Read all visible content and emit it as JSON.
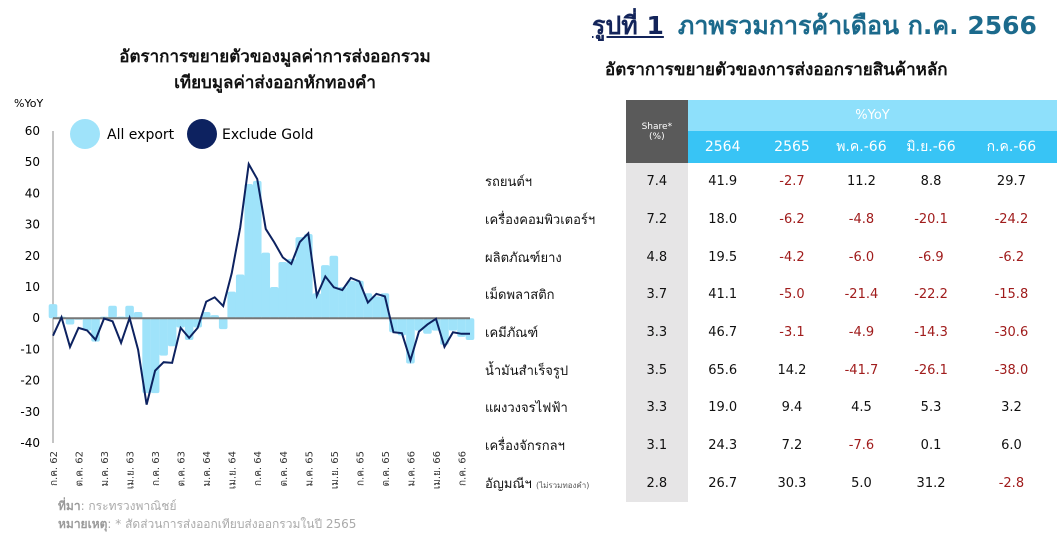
{
  "figure": {
    "number": "รูปที่ 1",
    "title": "ภาพรวมการค้าเดือน ก.ค. 2566"
  },
  "chart_data": {
    "type": "bar",
    "title": [
      "อัตราการขยายตัวของมูลค่าการส่งออกรวม",
      "เทียบมูลค่าส่งออกหักทองคำ"
    ],
    "ylabel": "%YoY",
    "ylim": [
      -40,
      60
    ],
    "yticks": [
      60,
      50,
      40,
      30,
      20,
      10,
      0,
      -10,
      -20,
      -30,
      -40
    ],
    "xtick_labels": [
      "ก.ค. 62",
      "ต.ค. 62",
      "ม.ค. 63",
      "เม.ย. 63",
      "ก.ค. 63",
      "ต.ค. 63",
      "ม.ค. 64",
      "เม.ย. 64",
      "ก.ค. 64",
      "ต.ค. 64",
      "ม.ค. 65",
      "เม.ย. 65",
      "ก.ค. 65",
      "ต.ค. 65",
      "ม.ค. 66",
      "เม.ย. 66",
      "ก.ค. 66"
    ],
    "legend_position": "top-left",
    "series": [
      {
        "name": "All export",
        "type": "bar",
        "color": "#9fe3fa",
        "values": [
          4.5,
          0.5,
          -2,
          -0.5,
          -4,
          -7.5,
          0.5,
          4,
          0.5,
          4,
          2,
          -24,
          -24,
          -12,
          -9,
          -3,
          -7,
          -3,
          2,
          1,
          -3.5,
          8.5,
          14,
          43,
          44,
          21,
          10,
          18,
          19,
          26,
          27,
          8,
          17,
          20,
          10,
          12,
          12,
          8,
          7,
          8,
          -4.5,
          -5.5,
          -14.5,
          -4,
          -5,
          -4,
          -8.5,
          -4,
          -6,
          -7
        ]
      },
      {
        "name": "Exclude Gold",
        "type": "line",
        "color": "#0d2260",
        "values": [
          -5.6,
          0.3,
          -9.2,
          -3.1,
          -3.9,
          -6.9,
          -0.1,
          -1,
          -7.9,
          0.1,
          -10.1,
          -27.7,
          -16.8,
          -14.1,
          -14.3,
          -3.1,
          -6.3,
          -3.1,
          5.3,
          6.7,
          3.9,
          14.4,
          29.1,
          49.4,
          44.6,
          28.6,
          24.3,
          19.5,
          17.4,
          24.4,
          27.2,
          7.2,
          13.4,
          9.9,
          9,
          12.9,
          11.8,
          5,
          7.8,
          7,
          -4.5,
          -4.8,
          -13.5,
          -4.3,
          -2,
          -0.2,
          -9.2,
          -4.5,
          -5,
          -5
        ]
      }
    ]
  },
  "source": {
    "label": "ที่มา",
    "text": ": กระทรวงพาณิชย์"
  },
  "note": {
    "label": "หมายเหตุ",
    "text": ": * สัดส่วนการส่งออกเทียบส่งออกรวมในปี 2565"
  },
  "table": {
    "title": "อัตราการขยายตัวของการส่งออกรายสินค้าหลัก",
    "share_header": [
      "Share*",
      "(%)"
    ],
    "group_header": "%YoY",
    "columns": [
      "2564",
      "2565",
      "พ.ค.-66",
      "มิ.ย.-66",
      "ก.ค.-66"
    ],
    "rows": [
      {
        "name": "รถยนต์ฯ",
        "share": "7.4",
        "values": [
          "41.9",
          "-2.7",
          "11.2",
          "8.8",
          "29.7"
        ]
      },
      {
        "name": "เครื่องคอมพิวเตอร์ฯ",
        "share": "7.2",
        "values": [
          "18.0",
          "-6.2",
          "-4.8",
          "-20.1",
          "-24.2"
        ]
      },
      {
        "name": "ผลิตภัณฑ์ยาง",
        "share": "4.8",
        "values": [
          "19.5",
          "-4.2",
          "-6.0",
          "-6.9",
          "-6.2"
        ]
      },
      {
        "name": "เม็ดพลาสติก",
        "share": "3.7",
        "values": [
          "41.1",
          "-5.0",
          "-21.4",
          "-22.2",
          "-15.8"
        ]
      },
      {
        "name": "เคมีภัณฑ์",
        "share": "3.3",
        "values": [
          "46.7",
          "-3.1",
          "-4.9",
          "-14.3",
          "-30.6"
        ]
      },
      {
        "name": "น้ำมันสำเร็จรูป",
        "share": "3.5",
        "values": [
          "65.6",
          "14.2",
          "-41.7",
          "-26.1",
          "-38.0"
        ]
      },
      {
        "name": "แผงวงจรไฟฟ้า",
        "share": "3.3",
        "values": [
          "19.0",
          "9.4",
          "4.5",
          "5.3",
          "3.2"
        ]
      },
      {
        "name": "เครื่องจักรกลฯ",
        "share": "3.1",
        "values": [
          "24.3",
          "7.2",
          "-7.6",
          "0.1",
          "6.0"
        ]
      },
      {
        "name": "อัญมณีฯ",
        "note": "(ไม่รวมทองคำ)",
        "share": "2.8",
        "values": [
          "26.7",
          "30.3",
          "5.0",
          "31.2",
          "-2.8"
        ]
      }
    ]
  }
}
